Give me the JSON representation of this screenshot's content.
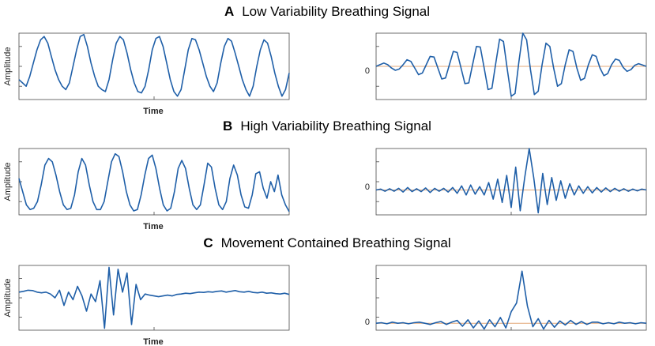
{
  "figure": {
    "panels": [
      {
        "letter": "A",
        "title": "Low Variability Breathing Signal"
      },
      {
        "letter": "B",
        "title": "High Variability Breathing Signal"
      },
      {
        "letter": "C",
        "title": "Movement Contained Breathing Signal"
      }
    ],
    "left_xlabel": "Time",
    "left_ylabel": "Amplitude",
    "right_zero_label": "0"
  },
  "colors": {
    "signal": "#1f5fa8",
    "zero_line": "#e3a878",
    "axes": "#4a4a4a"
  },
  "chart_data": [
    {
      "type": "line",
      "panel": "A",
      "side": "left",
      "xlabel": "Time",
      "ylabel": "Amplitude",
      "series": [
        {
          "values": [
            0.3,
            0.25,
            0.2,
            0.35,
            0.55,
            0.75,
            0.9,
            0.95,
            0.85,
            0.65,
            0.45,
            0.3,
            0.2,
            0.15,
            0.25,
            0.5,
            0.75,
            0.95,
            0.98,
            0.8,
            0.55,
            0.35,
            0.2,
            0.15,
            0.12,
            0.3,
            0.6,
            0.85,
            0.95,
            0.9,
            0.7,
            0.45,
            0.25,
            0.12,
            0.1,
            0.2,
            0.45,
            0.75,
            0.92,
            0.95,
            0.8,
            0.55,
            0.3,
            0.12,
            0.05,
            0.15,
            0.45,
            0.75,
            0.92,
            0.9,
            0.75,
            0.55,
            0.35,
            0.2,
            0.12,
            0.25,
            0.55,
            0.8,
            0.92,
            0.88,
            0.7,
            0.5,
            0.3,
            0.15,
            0.05,
            0.2,
            0.5,
            0.75,
            0.9,
            0.85,
            0.65,
            0.4,
            0.2,
            0.05,
            0.15,
            0.4
          ]
        }
      ]
    },
    {
      "type": "line",
      "panel": "A",
      "side": "right",
      "zero_label": "0",
      "series": [
        {
          "values": [
            0,
            0.05,
            0.1,
            0.05,
            -0.05,
            -0.12,
            -0.08,
            0.05,
            0.2,
            0.15,
            -0.05,
            -0.25,
            -0.2,
            0.05,
            0.3,
            0.28,
            -0.05,
            -0.38,
            -0.35,
            0.05,
            0.45,
            0.42,
            -0.05,
            -0.52,
            -0.5,
            0.05,
            0.6,
            0.58,
            -0.05,
            -0.7,
            -0.66,
            0.1,
            0.82,
            0.75,
            -0.1,
            -0.9,
            -0.82,
            0.15,
            1.0,
            0.8,
            -0.1,
            -0.85,
            -0.75,
            0.05,
            0.7,
            0.6,
            -0.05,
            -0.6,
            -0.52,
            0.05,
            0.5,
            0.45,
            -0.05,
            -0.42,
            -0.36,
            0.05,
            0.35,
            0.3,
            -0.05,
            -0.28,
            -0.22,
            0.05,
            0.22,
            0.18,
            -0.03,
            -0.15,
            -0.1,
            0.03,
            0.08,
            0.04,
            0
          ]
        }
      ]
    },
    {
      "type": "line",
      "panel": "B",
      "side": "left",
      "xlabel": "Time",
      "ylabel": "Amplitude",
      "series": [
        {
          "values": [
            0.55,
            0.35,
            0.15,
            0.08,
            0.1,
            0.2,
            0.45,
            0.75,
            0.85,
            0.8,
            0.6,
            0.35,
            0.15,
            0.08,
            0.1,
            0.3,
            0.65,
            0.85,
            0.75,
            0.45,
            0.2,
            0.08,
            0.08,
            0.2,
            0.5,
            0.8,
            0.92,
            0.88,
            0.65,
            0.35,
            0.15,
            0.06,
            0.08,
            0.3,
            0.6,
            0.85,
            0.9,
            0.7,
            0.4,
            0.15,
            0.06,
            0.1,
            0.35,
            0.7,
            0.82,
            0.7,
            0.4,
            0.15,
            0.08,
            0.15,
            0.45,
            0.78,
            0.72,
            0.4,
            0.15,
            0.08,
            0.2,
            0.55,
            0.75,
            0.6,
            0.3,
            0.12,
            0.1,
            0.3,
            0.62,
            0.65,
            0.4,
            0.25,
            0.5,
            0.35,
            0.6,
            0.3,
            0.15,
            0.05
          ]
        }
      ]
    },
    {
      "type": "line",
      "panel": "B",
      "side": "right",
      "zero_label": "0",
      "series": [
        {
          "values": [
            0,
            0.02,
            -0.03,
            0.03,
            -0.03,
            0.04,
            -0.05,
            0.06,
            -0.04,
            0.03,
            -0.04,
            0.05,
            -0.06,
            0.04,
            -0.03,
            0.04,
            -0.05,
            0.06,
            -0.08,
            0.1,
            -0.12,
            0.12,
            -0.1,
            0.08,
            -0.12,
            0.18,
            -0.22,
            0.26,
            -0.3,
            0.35,
            -0.42,
            0.55,
            -0.5,
            0.3,
            1.0,
            0.3,
            -0.55,
            0.4,
            -0.35,
            0.3,
            -0.25,
            0.22,
            -0.2,
            0.15,
            -0.12,
            0.1,
            -0.08,
            0.08,
            -0.07,
            0.06,
            -0.05,
            0.05,
            -0.04,
            0.04,
            -0.03,
            0.03,
            -0.03,
            0.02,
            -0.02,
            0.02,
            0
          ]
        }
      ]
    },
    {
      "type": "line",
      "panel": "C",
      "side": "left",
      "xlabel": "Time",
      "ylabel": "Amplitude",
      "series": [
        {
          "values": [
            0.3,
            0.32,
            0.35,
            0.34,
            0.3,
            0.28,
            0.3,
            0.25,
            0.15,
            0.35,
            -0.05,
            0.3,
            0.1,
            0.45,
            0.2,
            -0.2,
            0.25,
            0.05,
            0.6,
            -0.65,
            0.95,
            -0.3,
            0.9,
            0.3,
            0.8,
            -0.55,
            0.5,
            0.1,
            0.25,
            0.22,
            0.2,
            0.18,
            0.2,
            0.22,
            0.2,
            0.24,
            0.25,
            0.27,
            0.26,
            0.28,
            0.3,
            0.29,
            0.31,
            0.3,
            0.32,
            0.33,
            0.3,
            0.32,
            0.34,
            0.31,
            0.3,
            0.32,
            0.29,
            0.28,
            0.3,
            0.27,
            0.28,
            0.26,
            0.25,
            0.27,
            0.24
          ]
        }
      ]
    },
    {
      "type": "line",
      "panel": "C",
      "side": "right",
      "zero_label": "0",
      "series": [
        {
          "values": [
            0,
            0.01,
            -0.01,
            0.02,
            0,
            0.01,
            -0.01,
            0.01,
            0.02,
            0,
            -0.02,
            0.01,
            0.03,
            -0.02,
            0.02,
            0.05,
            -0.05,
            0.06,
            -0.08,
            0.04,
            -0.1,
            0.06,
            -0.06,
            0.1,
            -0.08,
            0.2,
            0.35,
            0.9,
            0.3,
            -0.06,
            0.08,
            -0.1,
            0.05,
            -0.07,
            0.04,
            -0.03,
            0.05,
            -0.02,
            0.03,
            -0.02,
            0.02,
            0.02,
            -0.01,
            0.01,
            -0.01,
            0.02,
            0,
            0.01,
            -0.01,
            0.01,
            0
          ]
        }
      ]
    }
  ]
}
